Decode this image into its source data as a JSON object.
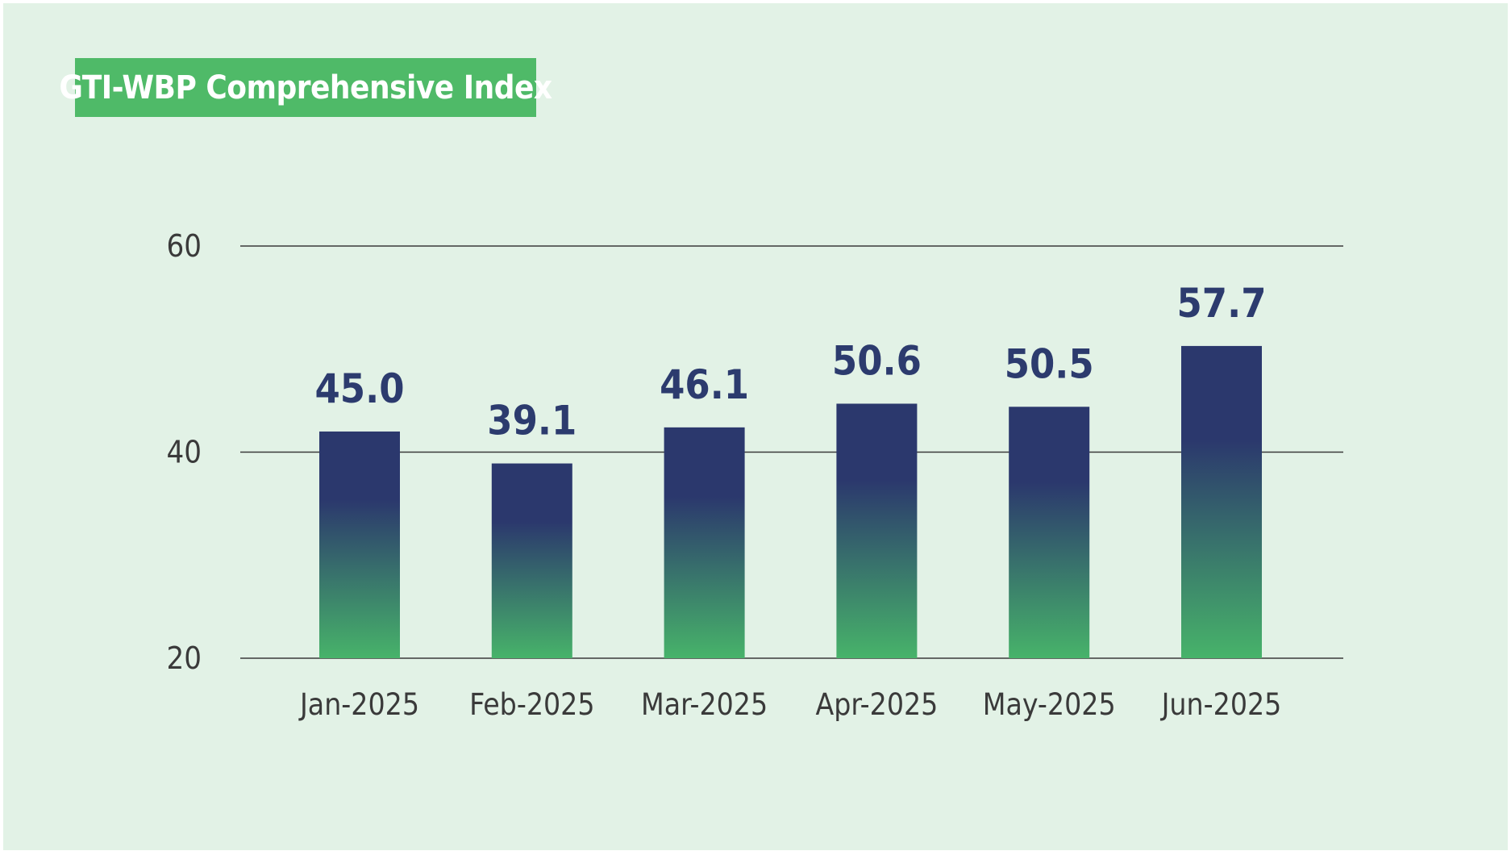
{
  "chart_data": {
    "type": "bar",
    "title": "GTI-WBP Comprehensive Index",
    "categories": [
      "Jan-2025",
      "Feb-2025",
      "Mar-2025",
      "Apr-2025",
      "May-2025",
      "Jun-2025"
    ],
    "values": [
      45.0,
      39.1,
      46.1,
      50.6,
      50.5,
      57.7
    ],
    "value_labels": [
      "45.0",
      "39.1",
      "46.1",
      "50.6",
      "50.5",
      "57.7"
    ],
    "bar_levels": [
      42.0,
      38.9,
      42.4,
      44.7,
      44.4,
      50.3
    ],
    "ylim": [
      20,
      60
    ],
    "yticks": [
      "20",
      "40",
      "60"
    ],
    "ytick_values": [
      20,
      40,
      60
    ],
    "xlabel": "",
    "ylabel": "",
    "grid": true,
    "legend": "none"
  },
  "colors": {
    "background": "#e2f2e6",
    "title_badge": "#4fba68",
    "bar_top": "#2b386d",
    "bar_bottom": "#47b36a",
    "value_label": "#2c3b6e",
    "gridline": "#3a3a3a"
  }
}
